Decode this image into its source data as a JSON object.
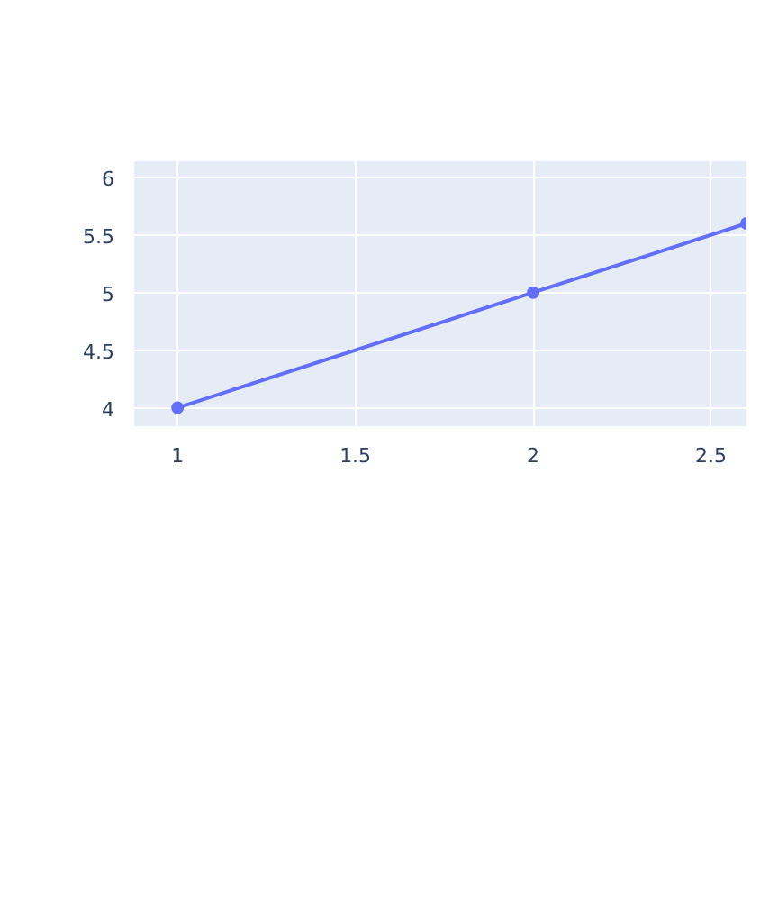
{
  "chart_data": {
    "type": "line",
    "x": [
      1,
      2,
      2.6
    ],
    "series": [
      {
        "color": "#636efa",
        "values": [
          4,
          5,
          5.6
        ]
      }
    ],
    "xlim": [
      0.878,
      2.6
    ],
    "ylim": [
      3.84,
      6.14
    ],
    "xticks": [
      1,
      1.5,
      2,
      2.5
    ],
    "yticks": [
      4,
      4.5,
      5,
      5.5,
      6
    ],
    "grid": true,
    "marker": "circle",
    "line_style": "solid"
  }
}
